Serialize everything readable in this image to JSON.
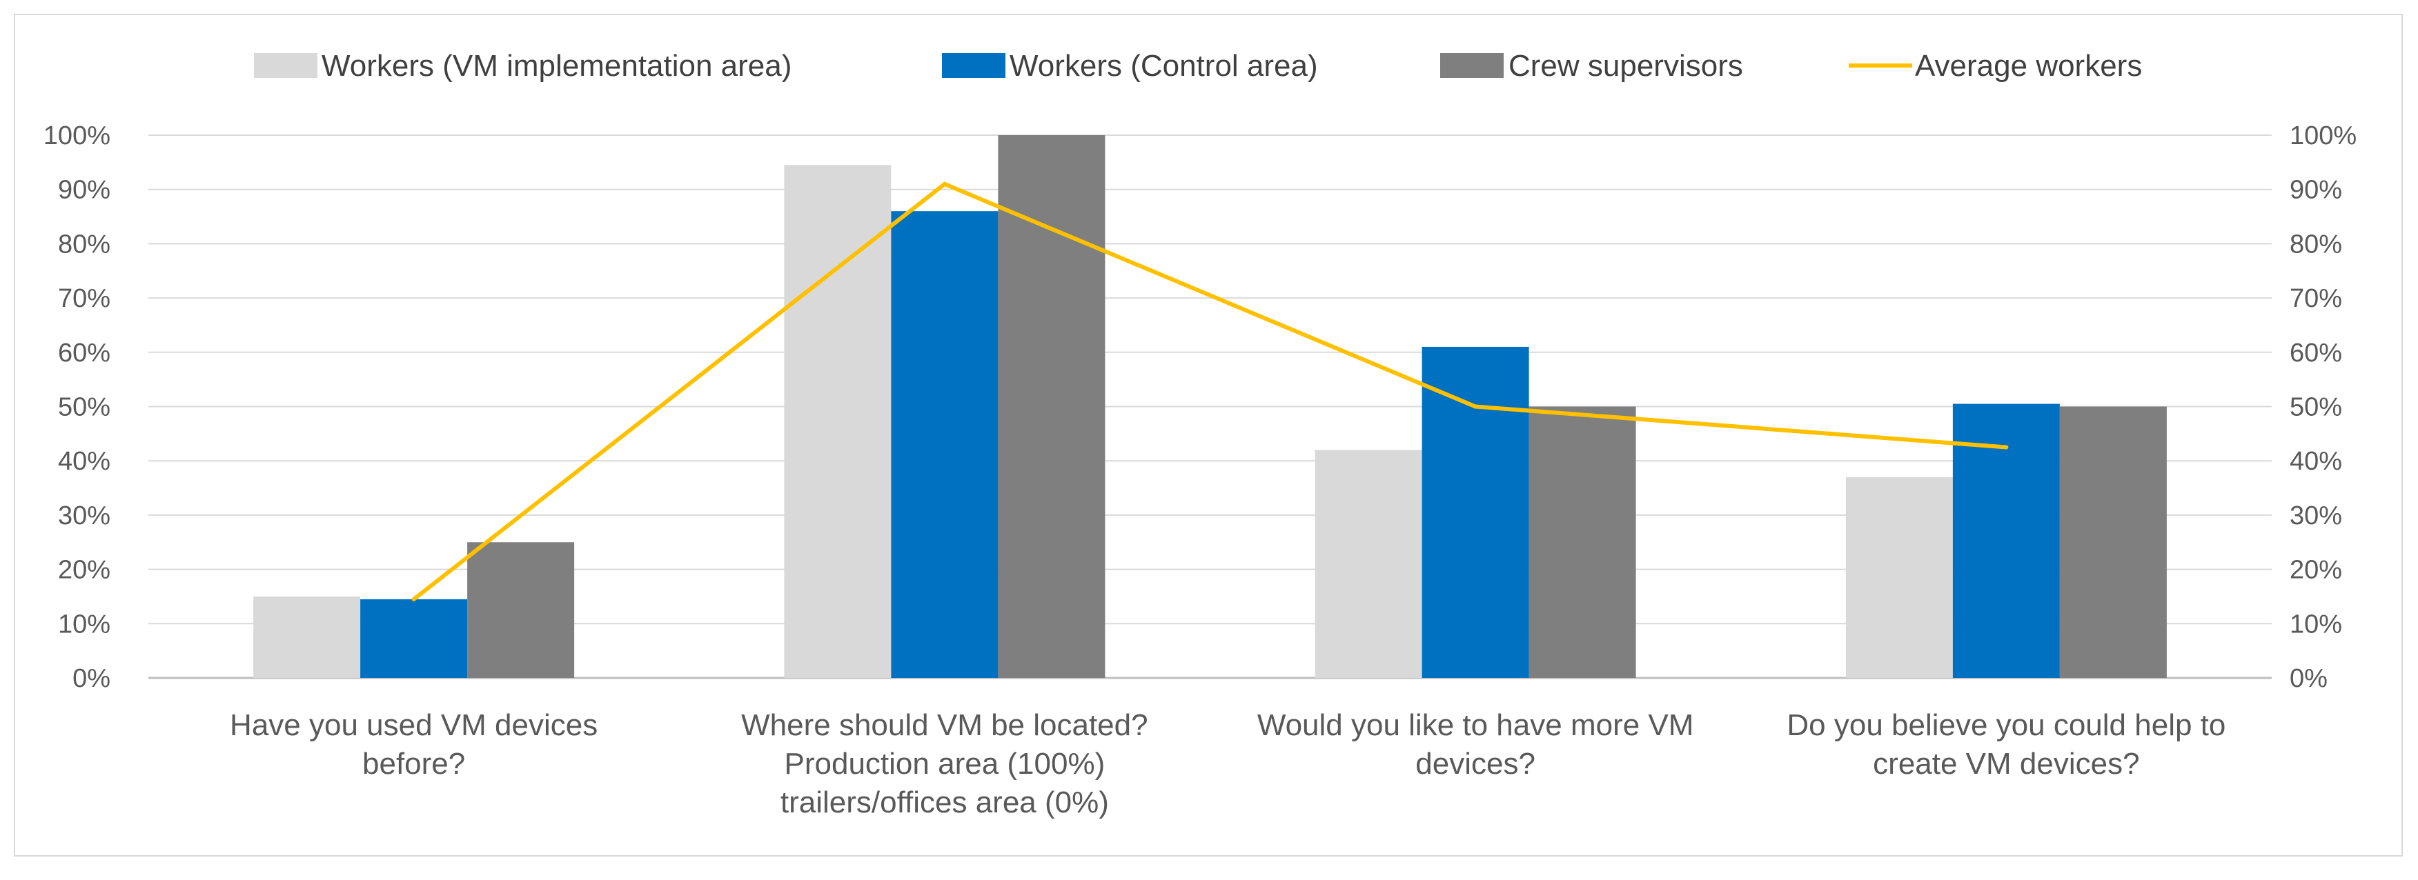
{
  "chart_data": {
    "type": "bar",
    "categories": [
      [
        "Have you used VM devices",
        "before?"
      ],
      [
        "Where should VM be located?",
        "Production area (100%)",
        "trailers/offices area (0%)"
      ],
      [
        "Would you like to have more VM",
        "devices?"
      ],
      [
        "Do you believe you could help to",
        "create VM devices?"
      ]
    ],
    "series": [
      {
        "name": "Workers (VM implementation area)",
        "kind": "bar",
        "color": "#d9d9d9",
        "values": [
          15,
          94.5,
          42,
          37
        ]
      },
      {
        "name": "Workers (Control area)",
        "kind": "bar",
        "color": "#0070c0",
        "values": [
          14.5,
          86,
          61,
          50.5
        ]
      },
      {
        "name": "Crew supervisors",
        "kind": "bar",
        "color": "#7f7f7f",
        "values": [
          25,
          100,
          50,
          50
        ]
      },
      {
        "name": "Average workers",
        "kind": "line",
        "color": "#ffc000",
        "values": [
          14.5,
          91,
          50,
          42.5
        ]
      }
    ],
    "ylim": [
      0,
      100
    ],
    "yticks": [
      "0%",
      "10%",
      "20%",
      "30%",
      "40%",
      "50%",
      "60%",
      "70%",
      "80%",
      "90%",
      "100%"
    ],
    "secondary_yticks": [
      "0%",
      "10%",
      "20%",
      "30%",
      "40%",
      "50%",
      "60%",
      "70%",
      "80%",
      "90%",
      "100%"
    ],
    "grid": true,
    "legend_position": "top"
  }
}
